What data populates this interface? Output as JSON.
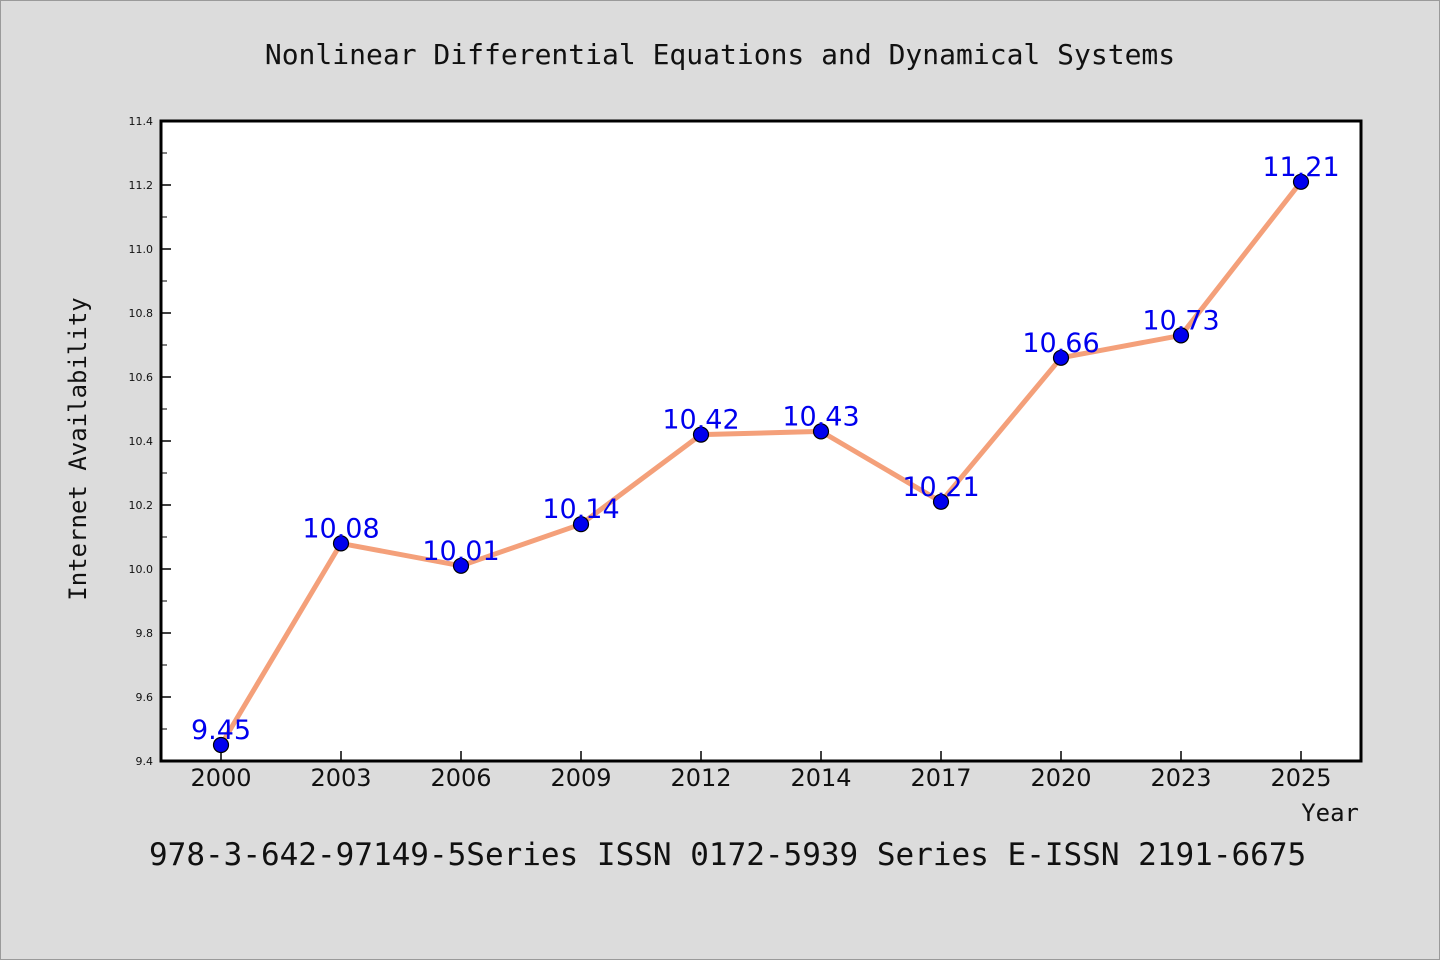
{
  "chart_data": {
    "type": "line",
    "title": "Nonlinear Differential Equations and Dynamical Systems",
    "xlabel": "Year",
    "ylabel": "Internet Availability",
    "categories": [
      "2000",
      "2003",
      "2006",
      "2009",
      "2012",
      "2014",
      "2017",
      "2020",
      "2023",
      "2025"
    ],
    "series": [
      {
        "values": [
          9.45,
          10.08,
          10.01,
          10.14,
          10.42,
          10.43,
          10.21,
          10.66,
          10.73,
          11.21
        ]
      }
    ],
    "data_labels": [
      "9.45",
      "10.08",
      "10.01",
      "10.14",
      "10.42",
      "10.43",
      "10.21",
      "10.66",
      "10.73",
      "11.21"
    ],
    "ylim": [
      9.4,
      11.4
    ],
    "yticks": [
      "9.4",
      "9.6",
      "9.8",
      "10.0",
      "10.2",
      "10.4",
      "10.6",
      "10.8",
      "11.0",
      "11.2",
      "11.4"
    ],
    "grid": false,
    "line_color": "#f4a07a",
    "marker_color": "#0000ee",
    "label_color": "#0000ee"
  },
  "footer": "978-3-642-97149-5Series ISSN 0172-5939 Series E-ISSN 2191-6675"
}
